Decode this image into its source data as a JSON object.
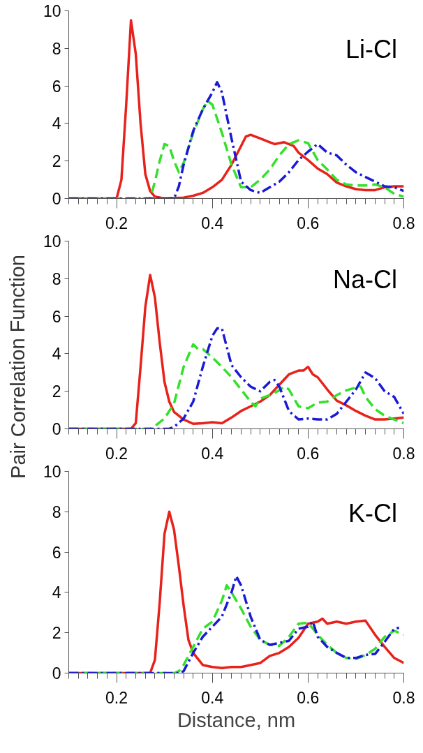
{
  "chart_data": [
    {
      "type": "line",
      "annotations": [
        "Li-Cl"
      ],
      "xlim": [
        0.1,
        0.8
      ],
      "ylim": [
        0,
        10
      ],
      "xticks": [
        0.2,
        0.4,
        0.6,
        0.8
      ],
      "yticks": [
        0,
        2,
        4,
        6,
        8,
        10
      ],
      "grid": false,
      "series": [
        {
          "color": "#e8211b",
          "line_style": "solid",
          "x": [
            0.1,
            0.2,
            0.21,
            0.22,
            0.23,
            0.24,
            0.25,
            0.26,
            0.27,
            0.28,
            0.3,
            0.34,
            0.36,
            0.38,
            0.4,
            0.42,
            0.44,
            0.46,
            0.47,
            0.48,
            0.5,
            0.52,
            0.53,
            0.55,
            0.57,
            0.58,
            0.6,
            0.62,
            0.64,
            0.66,
            0.68,
            0.7,
            0.72,
            0.74,
            0.76,
            0.78,
            0.8
          ],
          "values": [
            0,
            0,
            1.0,
            5.0,
            9.5,
            7.7,
            4.0,
            1.3,
            0.4,
            0.1,
            0,
            0.05,
            0.15,
            0.3,
            0.6,
            1.0,
            1.8,
            2.8,
            3.3,
            3.4,
            3.2,
            3.0,
            2.9,
            3.0,
            2.8,
            2.45,
            2.05,
            1.6,
            1.3,
            0.85,
            0.65,
            0.5,
            0.45,
            0.45,
            0.6,
            0.65,
            0.65
          ]
        },
        {
          "color": "#33e02a",
          "line_style": "dashed",
          "x": [
            0.1,
            0.27,
            0.28,
            0.29,
            0.3,
            0.31,
            0.32,
            0.33,
            0.34,
            0.36,
            0.38,
            0.39,
            0.4,
            0.42,
            0.44,
            0.46,
            0.48,
            0.5,
            0.52,
            0.54,
            0.56,
            0.58,
            0.6,
            0.62,
            0.64,
            0.66,
            0.68,
            0.7,
            0.72,
            0.74,
            0.76,
            0.78,
            0.8
          ],
          "values": [
            0,
            0,
            0.9,
            2.0,
            2.9,
            2.8,
            2.0,
            1.4,
            1.9,
            3.5,
            4.75,
            5.2,
            5.0,
            3.5,
            1.8,
            0.6,
            0.6,
            1.0,
            1.55,
            2.3,
            2.9,
            3.1,
            2.95,
            2.05,
            1.55,
            1.0,
            0.75,
            0.7,
            0.7,
            0.75,
            0.6,
            0.25,
            0.1
          ]
        },
        {
          "color": "#1a1ad6",
          "line_style": "dashdot",
          "x": [
            0.1,
            0.32,
            0.33,
            0.34,
            0.36,
            0.38,
            0.4,
            0.41,
            0.42,
            0.44,
            0.46,
            0.48,
            0.5,
            0.52,
            0.54,
            0.56,
            0.58,
            0.6,
            0.62,
            0.64,
            0.66,
            0.68,
            0.7,
            0.72,
            0.74,
            0.76,
            0.78,
            0.8
          ],
          "values": [
            0,
            0,
            0.65,
            1.8,
            3.6,
            4.75,
            5.65,
            6.2,
            5.65,
            3.2,
            0.9,
            0.45,
            0.3,
            0.6,
            0.9,
            1.4,
            2.05,
            2.5,
            2.9,
            2.45,
            2.3,
            1.8,
            1.4,
            1.15,
            0.9,
            0.65,
            0.6,
            0.4
          ]
        }
      ]
    },
    {
      "type": "line",
      "annotations": [
        "Na-Cl"
      ],
      "ylabel": "Pair Correlation Function",
      "xlim": [
        0.1,
        0.8
      ],
      "ylim": [
        0,
        10
      ],
      "xticks": [
        0.2,
        0.4,
        0.6,
        0.8
      ],
      "yticks": [
        0,
        2,
        4,
        6,
        8,
        10
      ],
      "grid": false,
      "series": [
        {
          "color": "#e8211b",
          "line_style": "solid",
          "x": [
            0.1,
            0.23,
            0.24,
            0.25,
            0.26,
            0.27,
            0.28,
            0.29,
            0.3,
            0.31,
            0.32,
            0.34,
            0.36,
            0.38,
            0.4,
            0.42,
            0.44,
            0.46,
            0.48,
            0.5,
            0.52,
            0.54,
            0.56,
            0.58,
            0.59,
            0.6,
            0.61,
            0.62,
            0.64,
            0.66,
            0.68,
            0.7,
            0.72,
            0.74,
            0.76,
            0.78,
            0.8
          ],
          "values": [
            0,
            0,
            0.3,
            3.3,
            6.5,
            8.2,
            7.0,
            4.6,
            2.5,
            1.45,
            0.9,
            0.5,
            0.27,
            0.3,
            0.35,
            0.3,
            0.6,
            0.95,
            1.2,
            1.45,
            1.8,
            2.35,
            2.9,
            3.1,
            3.1,
            3.3,
            2.9,
            2.75,
            2.1,
            1.5,
            1.25,
            0.95,
            0.7,
            0.5,
            0.5,
            0.55,
            0.6
          ]
        },
        {
          "color": "#33e02a",
          "line_style": "dashed",
          "x": [
            0.1,
            0.27,
            0.28,
            0.3,
            0.32,
            0.34,
            0.36,
            0.37,
            0.38,
            0.4,
            0.42,
            0.44,
            0.46,
            0.48,
            0.49,
            0.5,
            0.52,
            0.54,
            0.55,
            0.56,
            0.58,
            0.6,
            0.62,
            0.64,
            0.66,
            0.68,
            0.7,
            0.71,
            0.72,
            0.74,
            0.76,
            0.78,
            0.8
          ],
          "values": [
            0,
            0,
            0.15,
            0.55,
            1.35,
            3.3,
            4.5,
            4.25,
            4.25,
            3.8,
            3.3,
            2.75,
            2.1,
            1.45,
            1.2,
            1.6,
            1.8,
            2.05,
            2.25,
            2.1,
            1.2,
            1.1,
            1.4,
            1.45,
            1.8,
            2.05,
            2.2,
            2.25,
            1.7,
            1.05,
            0.7,
            0.5,
            0.3
          ]
        },
        {
          "color": "#1a1ad6",
          "line_style": "dashdot",
          "x": [
            0.1,
            0.31,
            0.32,
            0.34,
            0.36,
            0.38,
            0.4,
            0.41,
            0.42,
            0.44,
            0.46,
            0.48,
            0.5,
            0.52,
            0.53,
            0.54,
            0.56,
            0.58,
            0.6,
            0.62,
            0.64,
            0.66,
            0.68,
            0.7,
            0.72,
            0.74,
            0.76,
            0.78,
            0.8
          ],
          "values": [
            0,
            0,
            0.1,
            0.55,
            1.45,
            3.3,
            4.95,
            5.35,
            5.35,
            3.4,
            2.75,
            2.25,
            2.0,
            2.5,
            2.6,
            2.25,
            0.95,
            0.5,
            0.55,
            0.5,
            0.5,
            0.8,
            1.45,
            2.1,
            3.0,
            2.7,
            2.0,
            1.7,
            0.8
          ]
        }
      ]
    },
    {
      "type": "line",
      "annotations": [
        "K-Cl"
      ],
      "xlabel": "Distance, nm",
      "xlim": [
        0.1,
        0.8
      ],
      "ylim": [
        0,
        10
      ],
      "xticks": [
        0.2,
        0.4,
        0.6,
        0.8
      ],
      "yticks": [
        0,
        2,
        4,
        6,
        8,
        10
      ],
      "grid": false,
      "series": [
        {
          "color": "#e8211b",
          "line_style": "solid",
          "x": [
            0.1,
            0.27,
            0.28,
            0.29,
            0.3,
            0.31,
            0.32,
            0.33,
            0.34,
            0.35,
            0.36,
            0.38,
            0.4,
            0.42,
            0.44,
            0.46,
            0.48,
            0.5,
            0.52,
            0.54,
            0.56,
            0.58,
            0.6,
            0.62,
            0.63,
            0.64,
            0.66,
            0.68,
            0.7,
            0.72,
            0.74,
            0.76,
            0.78,
            0.8
          ],
          "values": [
            0,
            0,
            0.65,
            3.5,
            6.9,
            8.0,
            7.1,
            5.3,
            3.35,
            1.65,
            1.0,
            0.4,
            0.3,
            0.25,
            0.3,
            0.3,
            0.4,
            0.5,
            0.85,
            1.0,
            1.3,
            1.75,
            2.45,
            2.55,
            2.7,
            2.45,
            2.55,
            2.45,
            2.55,
            2.6,
            1.9,
            1.3,
            0.75,
            0.5
          ]
        },
        {
          "color": "#33e02a",
          "line_style": "dashed",
          "x": [
            0.1,
            0.32,
            0.33,
            0.34,
            0.36,
            0.38,
            0.4,
            0.42,
            0.43,
            0.44,
            0.46,
            0.48,
            0.5,
            0.52,
            0.54,
            0.56,
            0.58,
            0.6,
            0.62,
            0.64,
            0.66,
            0.68,
            0.7,
            0.72,
            0.74,
            0.76,
            0.78,
            0.8
          ],
          "values": [
            0,
            0,
            0.1,
            0.4,
            1.3,
            2.2,
            2.55,
            3.6,
            4.35,
            4.0,
            3.2,
            2.3,
            1.65,
            1.4,
            1.35,
            1.8,
            2.45,
            2.5,
            1.9,
            1.4,
            1.0,
            0.75,
            0.7,
            0.9,
            1.2,
            1.8,
            2.1,
            1.9
          ]
        },
        {
          "color": "#1a1ad6",
          "line_style": "dashdot",
          "x": [
            0.1,
            0.33,
            0.34,
            0.36,
            0.38,
            0.4,
            0.42,
            0.44,
            0.45,
            0.46,
            0.48,
            0.5,
            0.52,
            0.54,
            0.56,
            0.58,
            0.6,
            0.61,
            0.62,
            0.64,
            0.66,
            0.68,
            0.7,
            0.72,
            0.74,
            0.76,
            0.78,
            0.79
          ],
          "values": [
            0,
            0,
            0.1,
            1.0,
            1.8,
            2.3,
            2.8,
            4.0,
            4.8,
            4.35,
            2.8,
            1.65,
            1.4,
            1.5,
            1.6,
            2.2,
            2.3,
            2.55,
            1.8,
            1.3,
            1.0,
            0.75,
            0.75,
            0.9,
            0.95,
            1.55,
            2.2,
            2.25
          ]
        }
      ]
    }
  ]
}
